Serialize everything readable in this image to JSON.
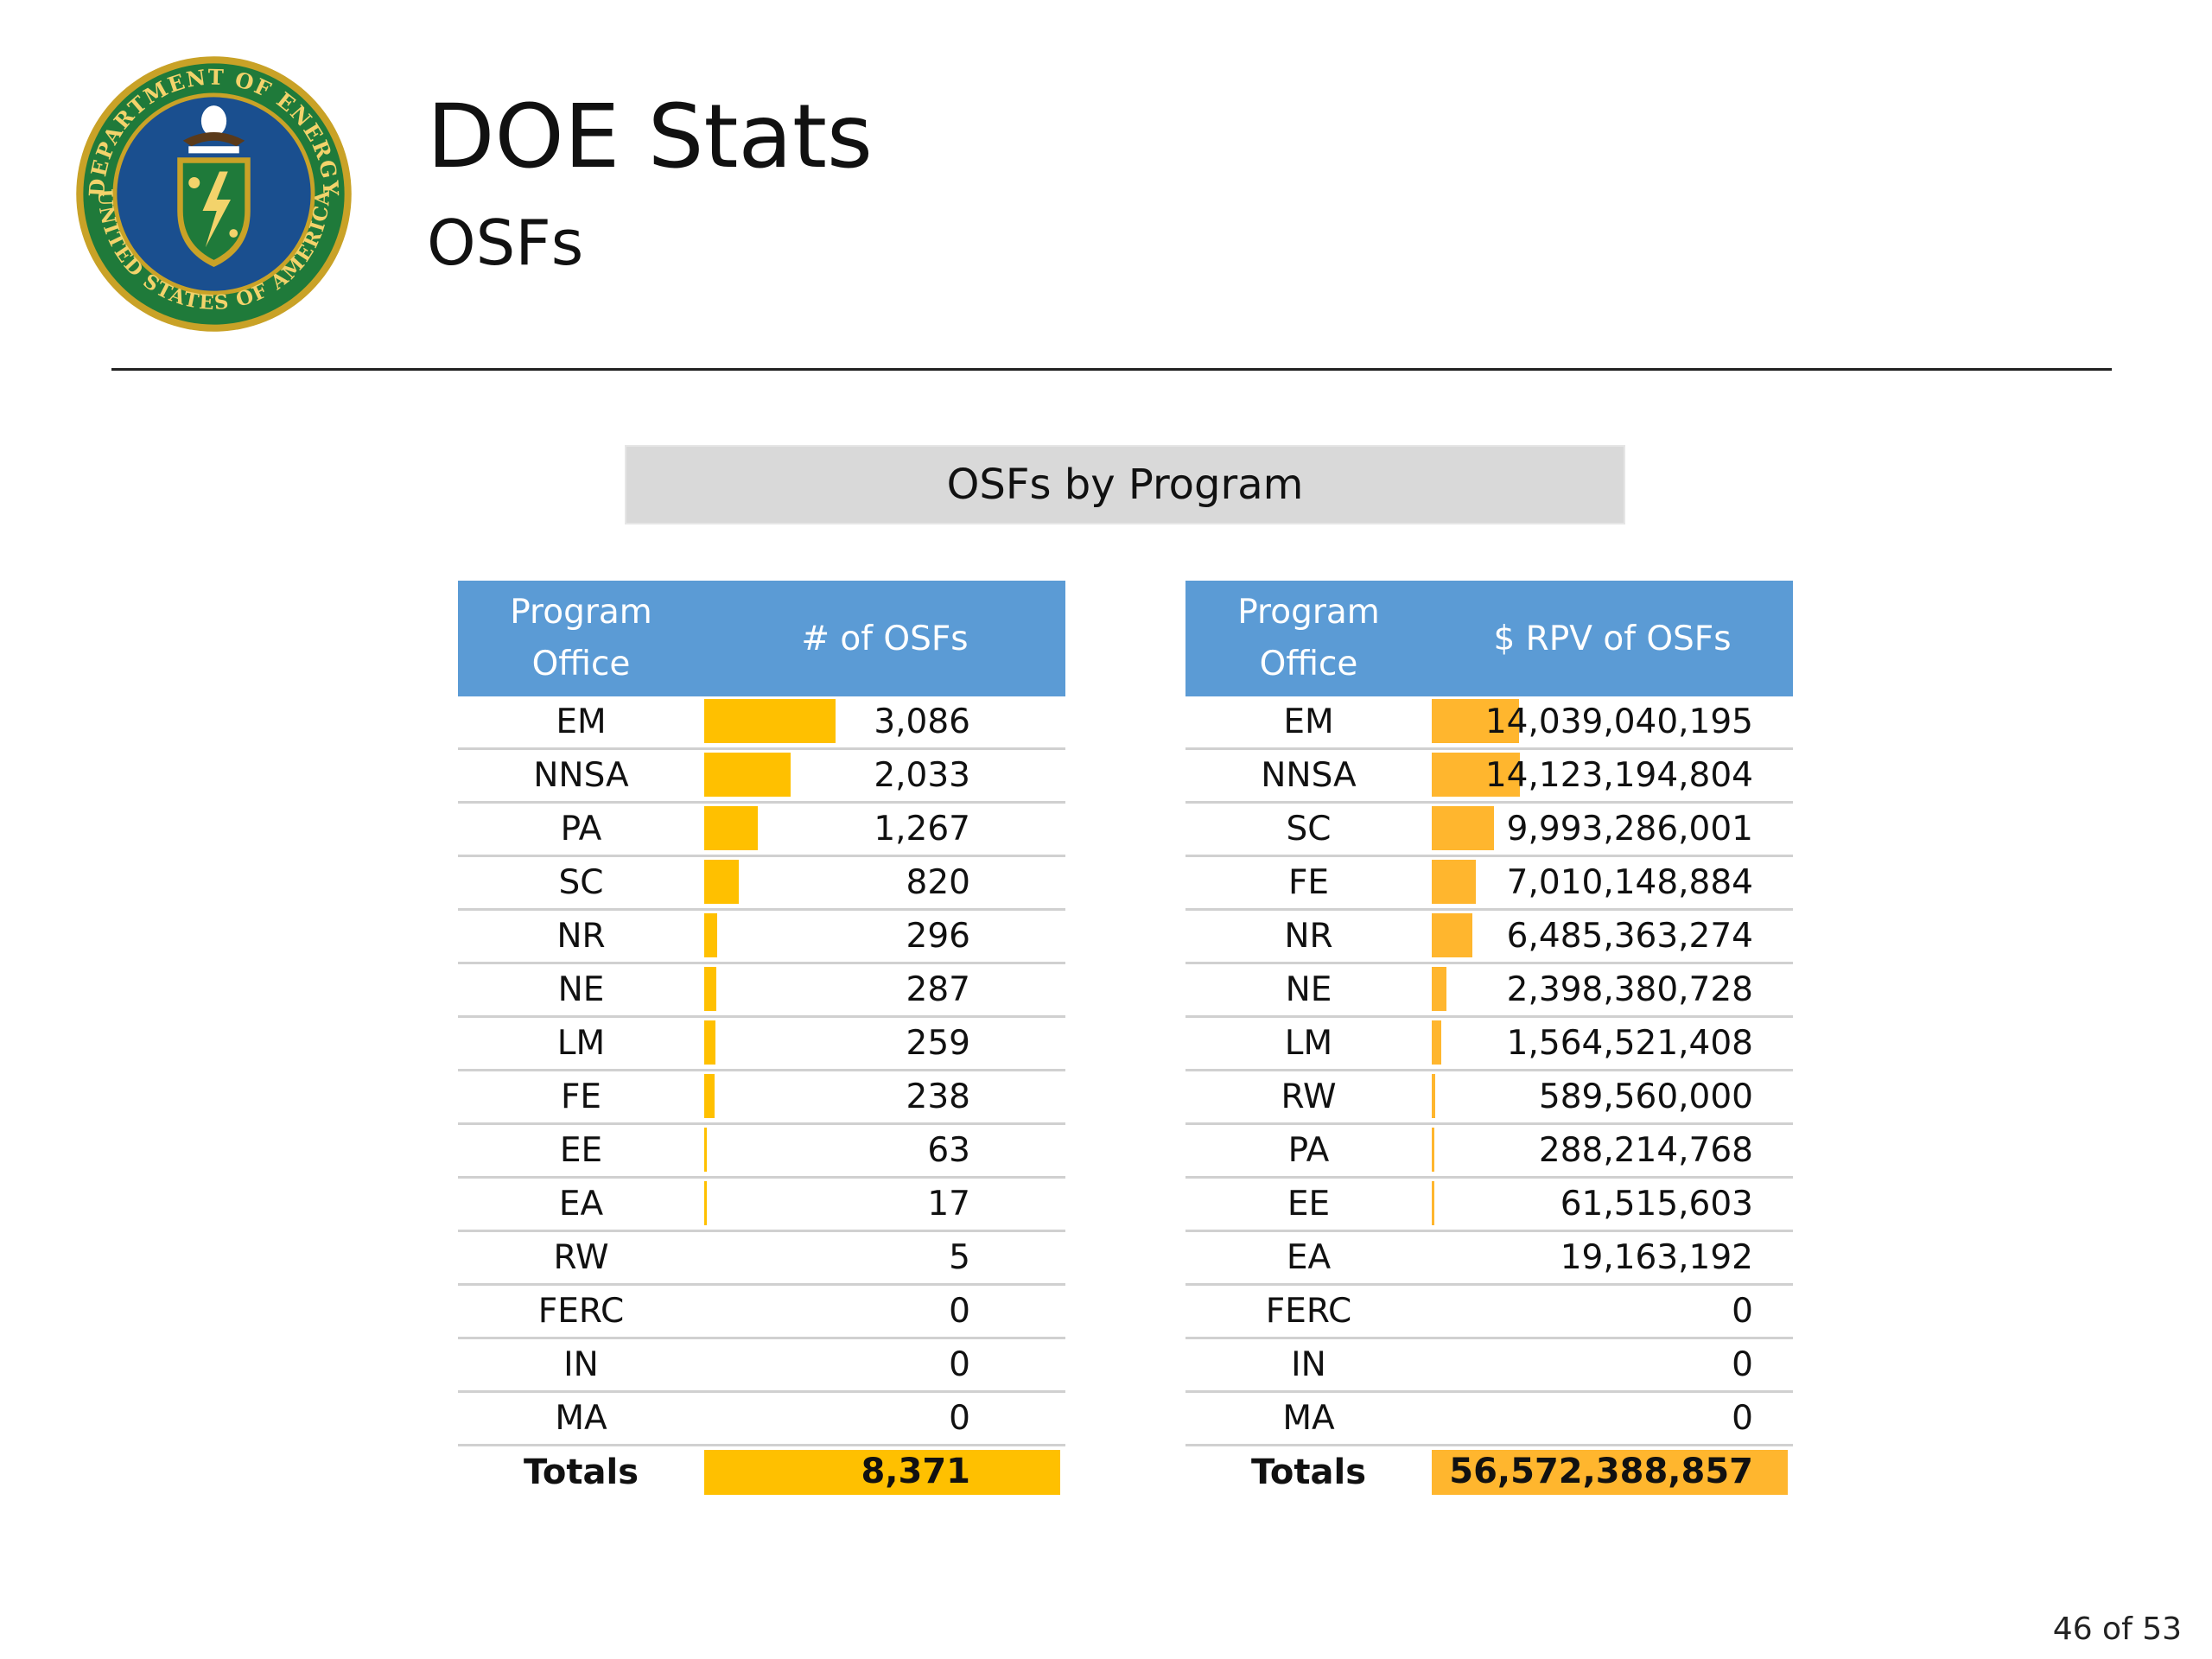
{
  "header": {
    "title": "DOE Stats",
    "subtitle": "OSFs",
    "seal": {
      "alt": "Department of Energy seal",
      "ring_text_top": "DEPARTMENT OF ENERGY",
      "ring_text_bottom": "UNITED STATES OF AMERICA"
    }
  },
  "section_title": "OSFs by Program",
  "table_count": {
    "header": {
      "program": "Program Office",
      "value": "# of OSFs"
    },
    "rows": [
      {
        "program": "EM",
        "value": "3,086",
        "n": 3086
      },
      {
        "program": "NNSA",
        "value": "2,033",
        "n": 2033
      },
      {
        "program": "PA",
        "value": "1,267",
        "n": 1267
      },
      {
        "program": "SC",
        "value": "820",
        "n": 820
      },
      {
        "program": "NR",
        "value": "296",
        "n": 296
      },
      {
        "program": "NE",
        "value": "287",
        "n": 287
      },
      {
        "program": "LM",
        "value": "259",
        "n": 259
      },
      {
        "program": "FE",
        "value": "238",
        "n": 238
      },
      {
        "program": "EE",
        "value": "63",
        "n": 63
      },
      {
        "program": "EA",
        "value": "17",
        "n": 17
      },
      {
        "program": "RW",
        "value": "5",
        "n": 5
      },
      {
        "program": "FERC",
        "value": "0",
        "n": 0
      },
      {
        "program": "IN",
        "value": "0",
        "n": 0
      },
      {
        "program": "MA",
        "value": "0",
        "n": 0
      }
    ],
    "totals": {
      "label": "Totals",
      "value": "8,371"
    }
  },
  "table_rpv": {
    "header": {
      "program": "Program Office",
      "value": "$ RPV of OSFs"
    },
    "rows": [
      {
        "program": "EM",
        "value": "14,039,040,195",
        "n": 14039040195
      },
      {
        "program": "NNSA",
        "value": "14,123,194,804",
        "n": 14123194804
      },
      {
        "program": "SC",
        "value": "9,993,286,001",
        "n": 9993286001
      },
      {
        "program": "FE",
        "value": "7,010,148,884",
        "n": 7010148884
      },
      {
        "program": "NR",
        "value": "6,485,363,274",
        "n": 6485363274
      },
      {
        "program": "NE",
        "value": "2,398,380,728",
        "n": 2398380728
      },
      {
        "program": "LM",
        "value": "1,564,521,408",
        "n": 1564521408
      },
      {
        "program": "RW",
        "value": "589,560,000",
        "n": 589560000
      },
      {
        "program": "PA",
        "value": "288,214,768",
        "n": 288214768
      },
      {
        "program": "EE",
        "value": "61,515,603",
        "n": 61515603
      },
      {
        "program": "EA",
        "value": "19,163,192",
        "n": 19163192
      },
      {
        "program": "FERC",
        "value": "0",
        "n": 0
      },
      {
        "program": "IN",
        "value": "0",
        "n": 0
      },
      {
        "program": "MA",
        "value": "0",
        "n": 0
      }
    ],
    "totals": {
      "label": "Totals",
      "value": "56,572,388,857"
    }
  },
  "footer": {
    "page": "46 of 53"
  },
  "colors": {
    "header_bg": "#5b9bd5",
    "bar_count": "#ffc000",
    "bar_rpv": "#ffb62e",
    "banner_bg": "#d9d9d9"
  }
}
